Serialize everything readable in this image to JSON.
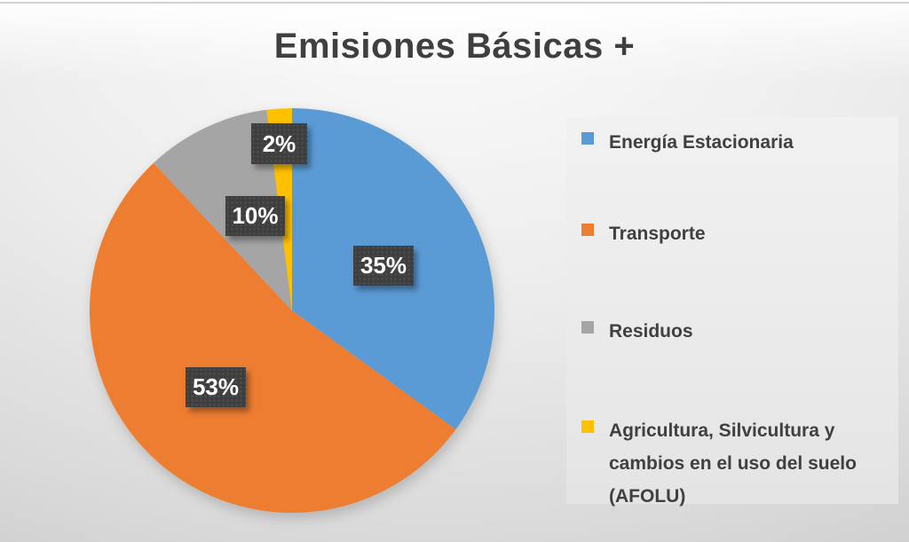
{
  "chart_data": {
    "type": "pie",
    "title": "Emisiones Básicas +",
    "direction": "clockwise",
    "start_angle_deg": 0,
    "legend_position": "right",
    "slices": [
      {
        "name": "Energía Estacionaria",
        "value": 35,
        "label": "35%",
        "color": "#5b9bd5"
      },
      {
        "name": "Transporte",
        "value": 53,
        "label": "53%",
        "color": "#ed7d31"
      },
      {
        "name": "Residuos",
        "value": 10,
        "label": "10%",
        "color": "#a5a5a5"
      },
      {
        "name": "Agricultura, Silvicultura y cambios en el uso del suelo (AFOLU)",
        "value": 2,
        "label": "2%",
        "color": "#ffc000"
      }
    ],
    "data_label_style": {
      "background": "#3e3e3e",
      "text_color": "#ffffff"
    },
    "title_color": "#3f3f3f"
  }
}
